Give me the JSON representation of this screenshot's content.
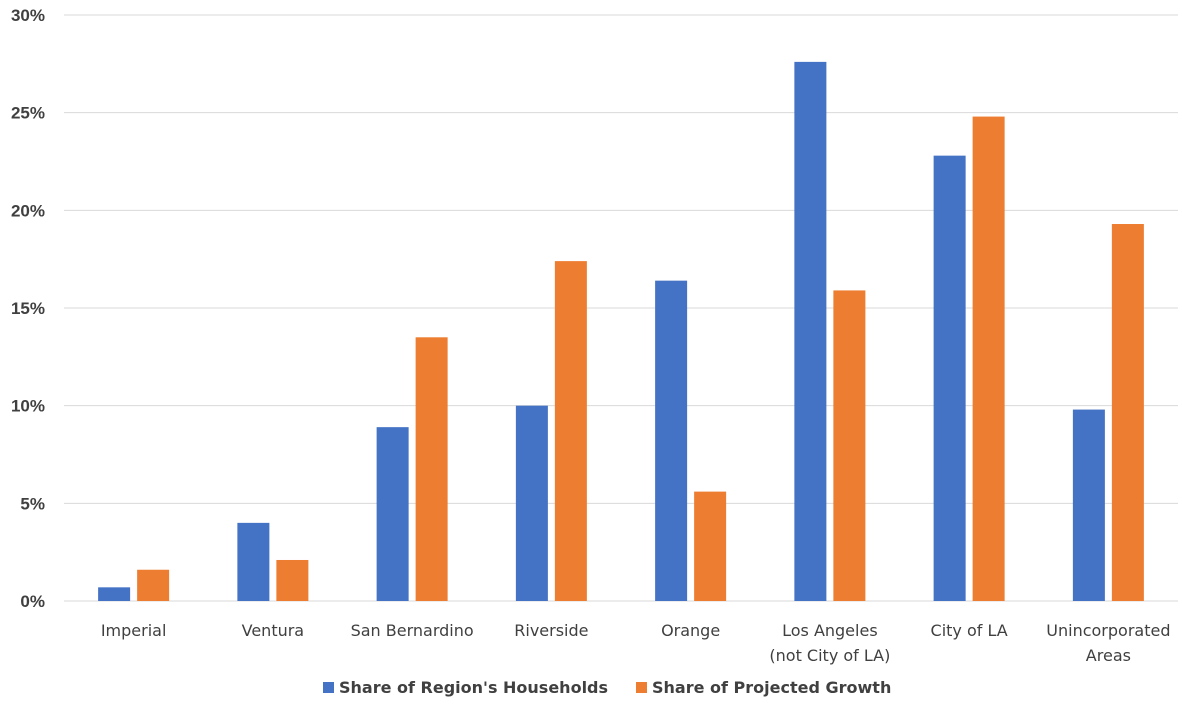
{
  "chart_data": {
    "type": "bar",
    "title": "",
    "xlabel": "",
    "ylabel": "",
    "categories": [
      [
        "Imperial"
      ],
      [
        "Ventura"
      ],
      [
        "San Bernardino"
      ],
      [
        "Riverside"
      ],
      [
        "Orange"
      ],
      [
        "Los Angeles",
        "(not City of LA)"
      ],
      [
        "City of LA"
      ],
      [
        "Unincorporated",
        "Areas"
      ]
    ],
    "series": [
      {
        "name": "Share of Region's Households",
        "color": "#4472C4",
        "values": [
          0.7,
          4.0,
          8.9,
          10.0,
          16.4,
          27.6,
          22.8,
          9.8
        ]
      },
      {
        "name": "Share of Projected Growth",
        "color": "#ED7D31",
        "values": [
          1.6,
          2.1,
          13.5,
          17.4,
          5.6,
          15.9,
          24.8,
          19.3
        ]
      }
    ],
    "ylim": [
      0,
      30
    ],
    "yticks": [
      0,
      5,
      10,
      15,
      20,
      25,
      30
    ],
    "ytick_labels": [
      "0%",
      "5%",
      "10%",
      "15%",
      "20%",
      "25%",
      "30%"
    ],
    "grid": true,
    "legend_position": "bottom"
  }
}
